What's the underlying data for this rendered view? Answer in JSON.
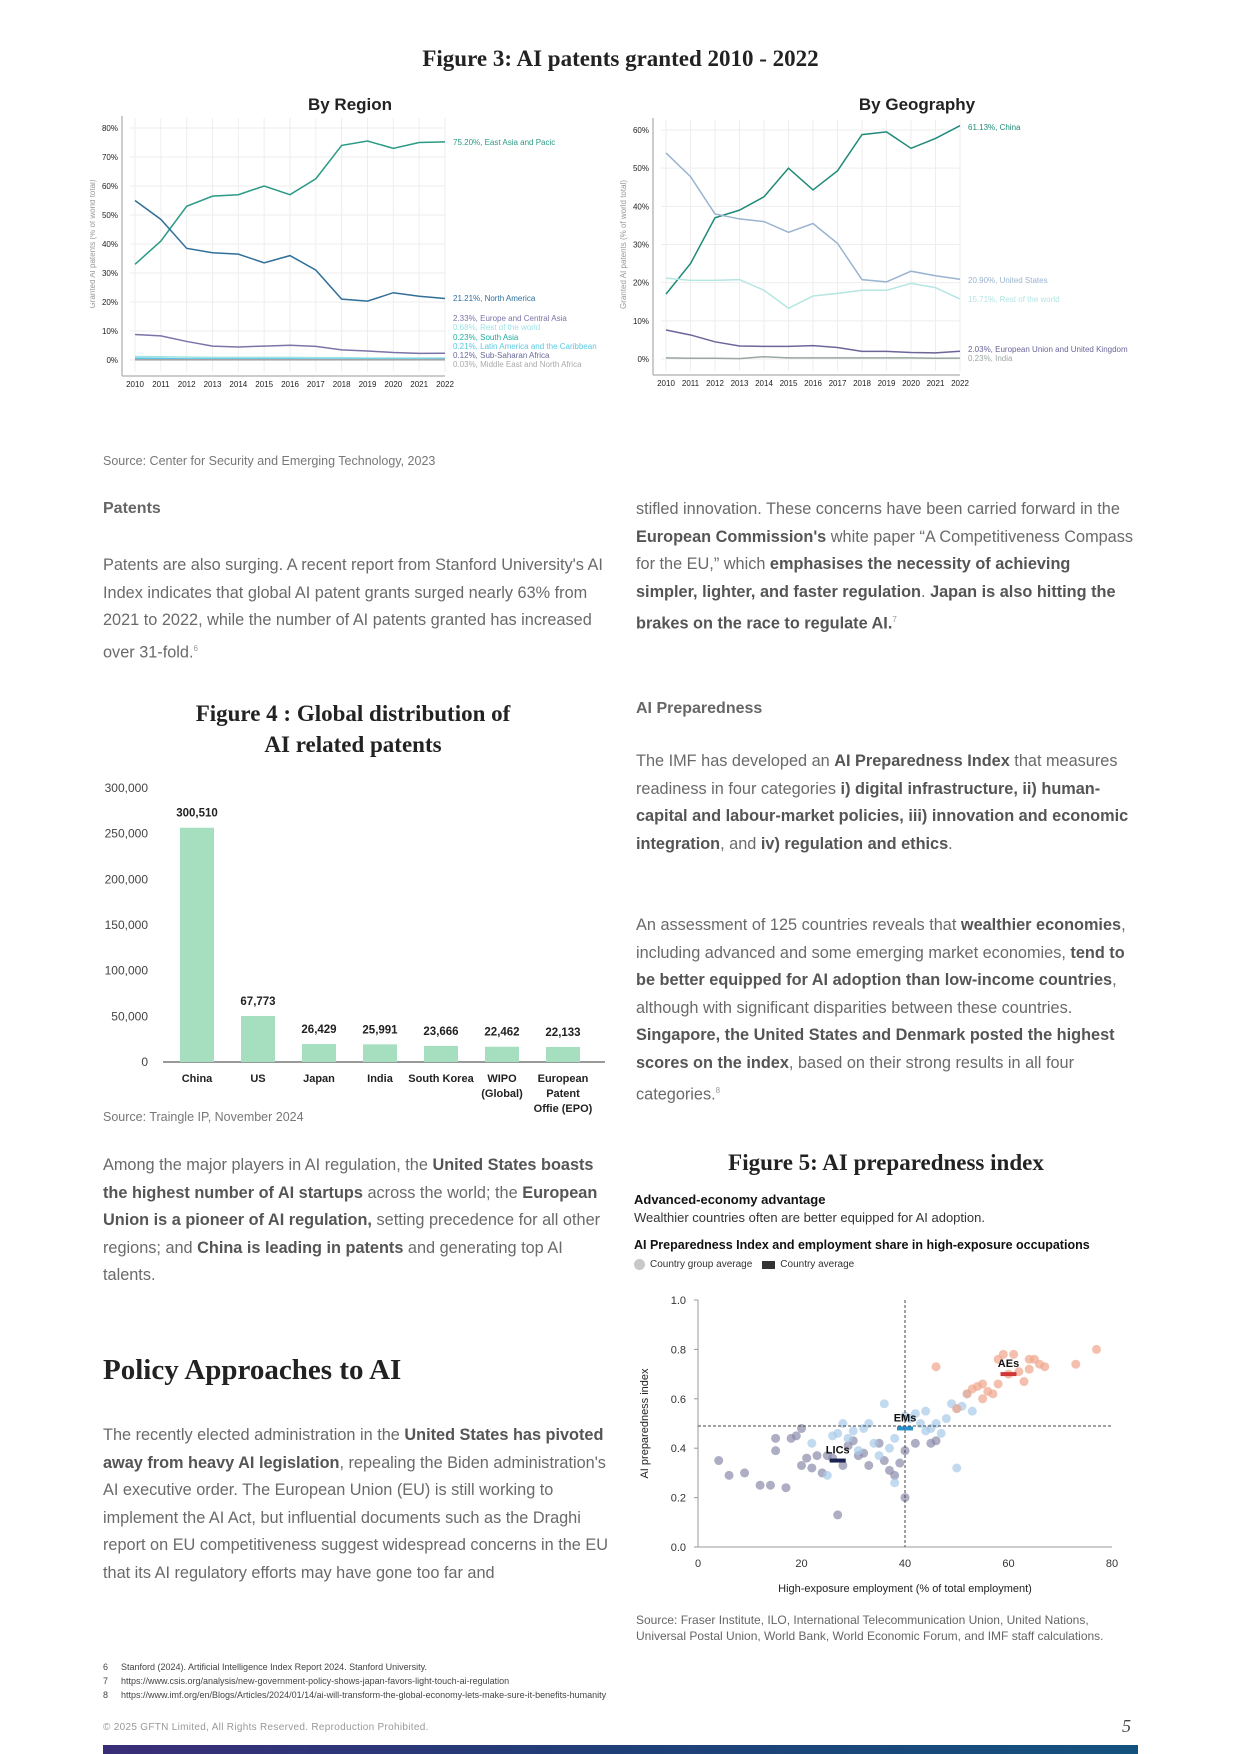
{
  "figure3": {
    "title": "Figure 3: AI patents granted 2010 - 2022",
    "source": "Source: Center for Security and Emerging Technology, 2023"
  },
  "chart_data": [
    {
      "type": "line",
      "title": "By Region",
      "ylabel": "Granted AI patents (% of world total)",
      "ylim": [
        0,
        80
      ],
      "yticks": [
        "0%",
        "10%",
        "20%",
        "30%",
        "40%",
        "50%",
        "60%",
        "70%",
        "80%"
      ],
      "x": [
        2010,
        2011,
        2012,
        2013,
        2014,
        2015,
        2016,
        2017,
        2018,
        2019,
        2020,
        2021,
        2022
      ],
      "series": [
        {
          "name": "East Asia and Pacic",
          "label": "75.20%, East Asia and Pacic",
          "color": "#2a9a86",
          "values": [
            33,
            41,
            53,
            56.5,
            57,
            60,
            57,
            62.5,
            74,
            75.5,
            73,
            75,
            75.2
          ]
        },
        {
          "name": "North America",
          "label": "21.21%, North America",
          "color": "#2f6f9a",
          "values": [
            55,
            48.5,
            38.5,
            37,
            36.5,
            33.5,
            36,
            31,
            21,
            20.3,
            23.2,
            22,
            21.21
          ]
        },
        {
          "name": "Europe and Central Asia",
          "label": "2.33%, Europe and Central Asia",
          "color": "#7a74a8",
          "values": [
            8.8,
            8.3,
            6.4,
            4.8,
            4.5,
            4.8,
            5.1,
            4.7,
            3.5,
            3.1,
            2.6,
            2.3,
            2.33
          ]
        },
        {
          "name": "Rest of the world",
          "label": "0.68%, Rest of the world",
          "color": "#9fe3e6",
          "values": [
            1.2,
            1.1,
            1,
            0.9,
            0.9,
            0.9,
            0.9,
            0.8,
            0.8,
            0.7,
            0.7,
            0.7,
            0.68
          ]
        },
        {
          "name": "South Asia",
          "label": "0.23%, South Asia",
          "color": "#1fae9c",
          "values": [
            0.1,
            0.1,
            0.1,
            0.1,
            0.1,
            0.1,
            0.2,
            0.2,
            0.2,
            0.2,
            0.2,
            0.2,
            0.23
          ]
        },
        {
          "name": "Latin America and the Caribbean",
          "label": "0.21%, Latin America and the Caribbean",
          "color": "#5ac8e0",
          "values": [
            0.6,
            0.5,
            0.4,
            0.4,
            0.4,
            0.4,
            0.4,
            0.3,
            0.3,
            0.3,
            0.3,
            0.2,
            0.21
          ]
        },
        {
          "name": "Sub-Saharan Africa",
          "label": "0.12%, Sub-Saharan Africa",
          "color": "#6a6a9a",
          "values": [
            0.1,
            0.1,
            0.1,
            0.1,
            0.1,
            0.1,
            0.1,
            0.1,
            0.1,
            0.1,
            0.1,
            0.1,
            0.12
          ]
        },
        {
          "name": "Middle East and North Africa",
          "label": "0.03%, Middle East and North Africa",
          "color": "#aaaaaa",
          "values": [
            0.05,
            0.05,
            0.05,
            0.05,
            0.05,
            0.05,
            0.05,
            0.04,
            0.04,
            0.03,
            0.03,
            0.03,
            0.03
          ]
        }
      ]
    },
    {
      "type": "line",
      "title": "By Geography",
      "ylabel": "Granted AI patents (% of world total)",
      "ylim": [
        0,
        60
      ],
      "yticks": [
        "0%",
        "10%",
        "20%",
        "30%",
        "40%",
        "50%",
        "60%"
      ],
      "x": [
        2010,
        2011,
        2012,
        2013,
        2014,
        2015,
        2016,
        2017,
        2018,
        2019,
        2020,
        2021,
        2022
      ],
      "series": [
        {
          "name": "China",
          "label": "61.13%, China",
          "color": "#1f8a78",
          "values": [
            17,
            25,
            37,
            39,
            42.5,
            50,
            44.3,
            49.3,
            58.8,
            59.5,
            55.2,
            57.8,
            61.13
          ]
        },
        {
          "name": "United States",
          "label": "20.90%, United States",
          "color": "#9ab3d0",
          "values": [
            54,
            47.8,
            38,
            36.7,
            36,
            33.2,
            35.5,
            30.3,
            20.8,
            20.2,
            23,
            21.8,
            20.9
          ]
        },
        {
          "name": "Rest of the world",
          "label": "15.71%, Rest of the world",
          "color": "#b4e6e2",
          "values": [
            21.2,
            20.6,
            20.6,
            20.8,
            18,
            13.3,
            16.5,
            17.2,
            18,
            18,
            19.8,
            18.7,
            15.71
          ]
        },
        {
          "name": "European Union and United Kingdom",
          "label": "2.03%, European Union and United Kingdom",
          "color": "#6a669a",
          "values": [
            7.6,
            6.3,
            4.5,
            3.4,
            3.3,
            3.3,
            3.5,
            3,
            2,
            2,
            1.7,
            1.6,
            2.03
          ]
        },
        {
          "name": "India",
          "label": "0.23%, India",
          "color": "#9aa8a0",
          "values": [
            0.3,
            0.2,
            0.2,
            0.1,
            0.6,
            0.3,
            0.3,
            0.3,
            0.3,
            0.3,
            0.3,
            0.2,
            0.23
          ]
        }
      ]
    },
    {
      "type": "bar",
      "title": "Figure 4 : Global distribution of AI related patents",
      "ylim": [
        0,
        300000
      ],
      "yticks": [
        "0",
        "50,000",
        "100,000",
        "150,000",
        "200,000",
        "250,000",
        "300,000"
      ],
      "color": "#a6dfc0",
      "categories": [
        [
          "China"
        ],
        [
          "US"
        ],
        [
          "Japan"
        ],
        [
          "India"
        ],
        [
          "South Korea"
        ],
        [
          "WIPO",
          "(Global)"
        ],
        [
          "European",
          "Patent",
          "Offie (EPO)"
        ]
      ],
      "values": [
        300510,
        67773,
        26429,
        25991,
        23666,
        22462,
        22133
      ],
      "labels": [
        "300,510",
        "67,773",
        "26,429",
        "25,991",
        "23,666",
        "22,462",
        "22,133"
      ]
    },
    {
      "type": "scatter",
      "title": "AI Preparedness Index and employment share in high-exposure occupations",
      "xlabel": "High-exposure employment (% of total employment)",
      "ylabel": "AI preparedness index",
      "xlim": [
        0,
        80
      ],
      "ylim": [
        0,
        1
      ],
      "xticks": [
        "0",
        "20",
        "40",
        "60",
        "80"
      ],
      "yticks": [
        "0.0",
        "0.2",
        "0.4",
        "0.6",
        "0.8",
        "1.0"
      ],
      "ref_x": 40,
      "ref_y": 0.49,
      "legend": [
        "Country group average",
        "Country average"
      ],
      "groups": [
        {
          "name": "LICs",
          "color": "#8a8aaa",
          "avg": [
            27,
            0.35
          ],
          "avg_color": "#1c2350",
          "points": [
            [
              4,
              0.35
            ],
            [
              6,
              0.29
            ],
            [
              9,
              0.3
            ],
            [
              12,
              0.25
            ],
            [
              14,
              0.25
            ],
            [
              15,
              0.39
            ],
            [
              15,
              0.44
            ],
            [
              17,
              0.24
            ],
            [
              18,
              0.44
            ],
            [
              19,
              0.45
            ],
            [
              20,
              0.48
            ],
            [
              20,
              0.33
            ],
            [
              21,
              0.36
            ],
            [
              22,
              0.32
            ],
            [
              23,
              0.37
            ],
            [
              24,
              0.3
            ],
            [
              25,
              0.37
            ],
            [
              26,
              0.36
            ],
            [
              27,
              0.13
            ],
            [
              28,
              0.33
            ],
            [
              29,
              0.41
            ],
            [
              30,
              0.43
            ],
            [
              31,
              0.37
            ],
            [
              32,
              0.38
            ],
            [
              33,
              0.33
            ],
            [
              35,
              0.42
            ],
            [
              36,
              0.35
            ],
            [
              37,
              0.31
            ],
            [
              38,
              0.29
            ],
            [
              39,
              0.34
            ],
            [
              40,
              0.2
            ],
            [
              40,
              0.39
            ],
            [
              42,
              0.42
            ],
            [
              45,
              0.42
            ],
            [
              46,
              0.43
            ]
          ]
        },
        {
          "name": "EMs",
          "color": "#a8cbe8",
          "avg": [
            40,
            0.48
          ],
          "avg_color": "#2a8ec8",
          "points": [
            [
              22,
              0.42
            ],
            [
              25,
              0.29
            ],
            [
              26,
              0.45
            ],
            [
              27,
              0.46
            ],
            [
              28,
              0.5
            ],
            [
              29,
              0.44
            ],
            [
              30,
              0.47
            ],
            [
              31,
              0.39
            ],
            [
              32,
              0.48
            ],
            [
              33,
              0.5
            ],
            [
              34,
              0.42
            ],
            [
              35,
              0.37
            ],
            [
              36,
              0.58
            ],
            [
              37,
              0.4
            ],
            [
              38,
              0.26
            ],
            [
              38,
              0.44
            ],
            [
              40,
              0.53
            ],
            [
              41,
              0.52
            ],
            [
              42,
              0.54
            ],
            [
              43,
              0.5
            ],
            [
              44,
              0.47
            ],
            [
              45,
              0.48
            ],
            [
              46,
              0.5
            ],
            [
              47,
              0.46
            ],
            [
              48,
              0.52
            ],
            [
              49,
              0.58
            ],
            [
              50,
              0.56
            ],
            [
              50,
              0.32
            ],
            [
              51,
              0.57
            ],
            [
              52,
              0.62
            ],
            [
              53,
              0.55
            ],
            [
              44,
              0.55
            ]
          ]
        },
        {
          "name": "AEs",
          "color": "#f0a58a",
          "avg": [
            60,
            0.7
          ],
          "avg_color": "#d03838",
          "points": [
            [
              46,
              0.73
            ],
            [
              50,
              0.56
            ],
            [
              52,
              0.62
            ],
            [
              53,
              0.64
            ],
            [
              54,
              0.65
            ],
            [
              55,
              0.66
            ],
            [
              56,
              0.63
            ],
            [
              57,
              0.62
            ],
            [
              58,
              0.76
            ],
            [
              59,
              0.78
            ],
            [
              60,
              0.7
            ],
            [
              61,
              0.78
            ],
            [
              62,
              0.71
            ],
            [
              63,
              0.67
            ],
            [
              64,
              0.72
            ],
            [
              65,
              0.76
            ],
            [
              66,
              0.74
            ],
            [
              67,
              0.73
            ],
            [
              58,
              0.66
            ],
            [
              55,
              0.6
            ],
            [
              73,
              0.74
            ],
            [
              77,
              0.8
            ],
            [
              64,
              0.76
            ]
          ]
        }
      ]
    }
  ],
  "figure4": {
    "title1": "Figure 4 : Global distribution of",
    "title2": "AI related patents",
    "source": "Source: Traingle IP, November 2024"
  },
  "figure5": {
    "title": "Figure 5: AI preparedness index",
    "subtitle": "Advanced-economy advantage",
    "desc": "Wealthier countries often are better equipped for AI adoption.",
    "source": "Source: Fraser Institute, ILO, International Telecommunication Union, United Nations, Universal Postal Union, World Bank, World Economic Forum, and IMF staff calculations."
  },
  "left": {
    "patents_heading": "Patents",
    "p1": [
      {
        "t": "Patents are also surging. A recent report from Stanford University's AI Index indicates that global AI patent grants surged nearly 63% from 2021 to 2022, while the number of AI patents granted has increased over 31-fold."
      },
      {
        "t": "6",
        "sup": true
      }
    ],
    "p2": [
      {
        "t": "Among the major players in AI regulation, the "
      },
      {
        "t": "United States boasts the highest number of AI startups",
        "b": true
      },
      {
        "t": " across the world; the "
      },
      {
        "t": "European Union is a pioneer of AI regulation,",
        "b": true
      },
      {
        "t": " setting precedence for all other regions; and "
      },
      {
        "t": "China is leading in patents",
        "b": true
      },
      {
        "t": " and generating top AI talents."
      }
    ],
    "policy_heading": "Policy Approaches to AI",
    "p3": [
      {
        "t": "The recently elected administration in the "
      },
      {
        "t": "United States has pivoted away from heavy AI legislation",
        "b": true
      },
      {
        "t": ", repealing the Biden administration's AI executive order. The European Union (EU) is still working to implement the AI Act, but influential documents such as the Draghi report on EU competitiveness suggest widespread concerns in the EU that its AI regulatory efforts may have gone too far and"
      }
    ]
  },
  "right": {
    "p1": [
      {
        "t": "stifled innovation. These concerns have been carried forward in the "
      },
      {
        "t": "European Commission's",
        "b": true
      },
      {
        "t": " white paper “A Competitiveness Compass for the EU,” which "
      },
      {
        "t": "emphasises the necessity of achieving simpler, lighter, and faster regulation",
        "b": true
      },
      {
        "t": ".  "
      },
      {
        "t": "Japan is also hitting the brakes on the race to regulate AI.",
        "b": true
      },
      {
        "t": "7",
        "sup": true
      }
    ],
    "prep_heading": "AI Preparedness",
    "p2": [
      {
        "t": "The IMF has developed an "
      },
      {
        "t": "AI Preparedness Index",
        "b": true
      },
      {
        "t": " that measures readiness in four categories "
      },
      {
        "t": "i) digital infrastructure, ii) human-capital and labour-market policies, iii) innovation and economic integration",
        "b": true
      },
      {
        "t": ", and "
      },
      {
        "t": "iv) regulation and ethics",
        "b": true
      },
      {
        "t": "."
      }
    ],
    "p3": [
      {
        "t": "An assessment of 125 countries reveals that "
      },
      {
        "t": "wealthier economies",
        "b": true
      },
      {
        "t": ", including advanced and some emerging market economies, "
      },
      {
        "t": "tend to be better equipped for AI adoption than low-income countries",
        "b": true
      },
      {
        "t": ", although with significant disparities between these countries. "
      },
      {
        "t": "Singapore, the United States and Denmark posted the highest scores on the index",
        "b": true
      },
      {
        "t": ", based on their strong results in all four categories."
      },
      {
        "t": "8",
        "sup": true
      }
    ]
  },
  "footnotes": [
    {
      "n": "6",
      "t": "Stanford (2024). Artificial Intelligence Index Report 2024. Stanford University."
    },
    {
      "n": "7",
      "t": "https://www.csis.org/analysis/new-government-policy-shows-japan-favors-light-touch-ai-regulation"
    },
    {
      "n": "8",
      "t": "https://www.imf.org/en/Blogs/Articles/2024/01/14/ai-will-transform-the-global-economy-lets-make-sure-it-benefits-humanity"
    }
  ],
  "footer": {
    "copyright": "© 2025 GFTN Limited, All Rights Reserved. Reproduction Prohibited.",
    "page": "5"
  }
}
